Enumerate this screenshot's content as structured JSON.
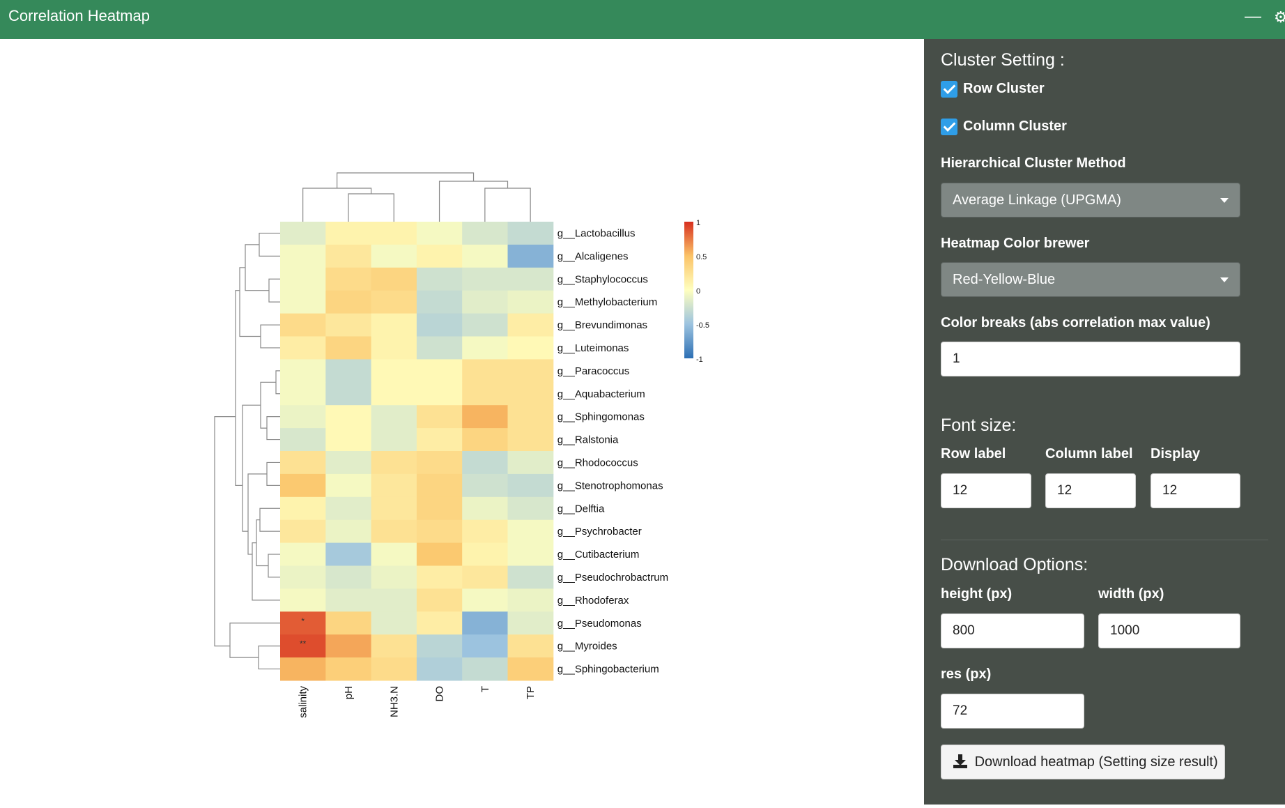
{
  "window": {
    "title": "Correlation Heatmap"
  },
  "colors": {
    "topbar": "#35895a",
    "sidebar": "#474e48",
    "checkbox": "#2f9ee8",
    "heatmap_scale": [
      "#2c6fb4",
      "#9cc3df",
      "#ffffbf",
      "#fbc367",
      "#d7301f"
    ]
  },
  "heatmap": {
    "legend_ticks": [
      "1",
      "0.5",
      "0",
      "-0.5",
      "-1"
    ],
    "row_labels": [
      "g__Lactobacillus",
      "g__Alcaligenes",
      "g__Staphylococcus",
      "g__Methylobacterium",
      "g__Brevundimonas",
      "g__Luteimonas",
      "g__Paracoccus",
      "g__Aquabacterium",
      "g__Sphingomonas",
      "g__Ralstonia",
      "g__Rhodococcus",
      "g__Stenotrophomonas",
      "g__Delftia",
      "g__Psychrobacter",
      "g__Cutibacterium",
      "g__Pseudochrobactrum",
      "g__Rhodoferax",
      "g__Pseudomonas",
      "g__Myroides",
      "g__Sphingobacterium"
    ],
    "col_labels": [
      "salinity",
      "pH",
      "NH3.N",
      "DO",
      "T",
      "TP"
    ],
    "chart_data": {
      "type": "heatmap",
      "x": [
        "salinity",
        "pH",
        "NH3.N",
        "DO",
        "T",
        "TP"
      ],
      "y": [
        "g__Lactobacillus",
        "g__Alcaligenes",
        "g__Staphylococcus",
        "g__Methylobacterium",
        "g__Brevundimonas",
        "g__Luteimonas",
        "g__Paracoccus",
        "g__Aquabacterium",
        "g__Sphingomonas",
        "g__Ralstonia",
        "g__Rhodococcus",
        "g__Stenotrophomonas",
        "g__Delftia",
        "g__Psychrobacter",
        "g__Cutibacterium",
        "g__Pseudochrobactrum",
        "g__Rhodoferax",
        "g__Pseudomonas",
        "g__Myroides",
        "g__Sphingobacterium"
      ],
      "values": [
        [
          -0.15,
          0.1,
          0.1,
          -0.05,
          -0.2,
          -0.3
        ],
        [
          -0.05,
          0.2,
          -0.05,
          0.1,
          -0.05,
          -0.6
        ],
        [
          -0.05,
          0.3,
          0.35,
          -0.25,
          -0.2,
          -0.2
        ],
        [
          -0.05,
          0.35,
          0.3,
          -0.3,
          -0.15,
          -0.1
        ],
        [
          0.3,
          0.2,
          0.1,
          -0.35,
          -0.25,
          0.15
        ],
        [
          0.15,
          0.35,
          0.1,
          -0.25,
          -0.05,
          0.05
        ],
        [
          -0.05,
          -0.3,
          0.05,
          0.05,
          0.25,
          0.25
        ],
        [
          -0.05,
          -0.3,
          0.05,
          0.05,
          0.25,
          0.25
        ],
        [
          -0.1,
          0.05,
          -0.15,
          0.25,
          0.55,
          0.25
        ],
        [
          -0.2,
          0.05,
          -0.15,
          0.15,
          0.35,
          0.25
        ],
        [
          0.25,
          -0.15,
          0.25,
          0.3,
          -0.3,
          -0.15
        ],
        [
          0.45,
          -0.05,
          0.2,
          0.35,
          -0.25,
          -0.3
        ],
        [
          0.1,
          -0.15,
          0.2,
          0.35,
          -0.1,
          -0.2
        ],
        [
          0.2,
          -0.1,
          0.25,
          0.3,
          0.15,
          -0.05
        ],
        [
          -0.05,
          -0.45,
          -0.05,
          0.45,
          0.1,
          -0.05
        ],
        [
          -0.1,
          -0.2,
          -0.1,
          0.15,
          0.2,
          -0.25
        ],
        [
          -0.05,
          -0.15,
          -0.15,
          0.25,
          -0.05,
          -0.1
        ],
        [
          0.85,
          0.35,
          -0.15,
          0.15,
          -0.6,
          -0.15
        ],
        [
          0.9,
          0.6,
          0.25,
          -0.35,
          -0.5,
          0.25
        ],
        [
          0.55,
          0.4,
          0.3,
          -0.4,
          -0.3,
          0.4
        ]
      ],
      "annotations": [
        {
          "row": "g__Pseudomonas",
          "col": "salinity",
          "text": "*"
        },
        {
          "row": "g__Myroides",
          "col": "salinity",
          "text": "**"
        }
      ],
      "color_range": [
        -1,
        1
      ],
      "row_cluster": true,
      "column_cluster": true
    }
  },
  "sidebar": {
    "cluster_heading": "Cluster Setting :",
    "row_cluster_label": "Row Cluster",
    "column_cluster_label": "Column Cluster",
    "method_label": "Hierarchical Cluster Method",
    "method_value": "Average Linkage (UPGMA)",
    "color_label": "Heatmap Color brewer",
    "color_value": "Red-Yellow-Blue",
    "breaks_label": "Color breaks (abs correlation max value)",
    "breaks_value": "1",
    "font_heading": "Font size:",
    "row_label_label": "Row label",
    "row_label_value": "12",
    "col_label_label": "Column label",
    "col_label_value": "12",
    "display_label": "Display",
    "display_value": "12",
    "download_heading": "Download Options:",
    "height_label": "height (px)",
    "height_value": "800",
    "width_label": "width (px)",
    "width_value": "1000",
    "res_label": "res (px)",
    "res_value": "72",
    "download_button": "Download heatmap (Setting size result)"
  }
}
